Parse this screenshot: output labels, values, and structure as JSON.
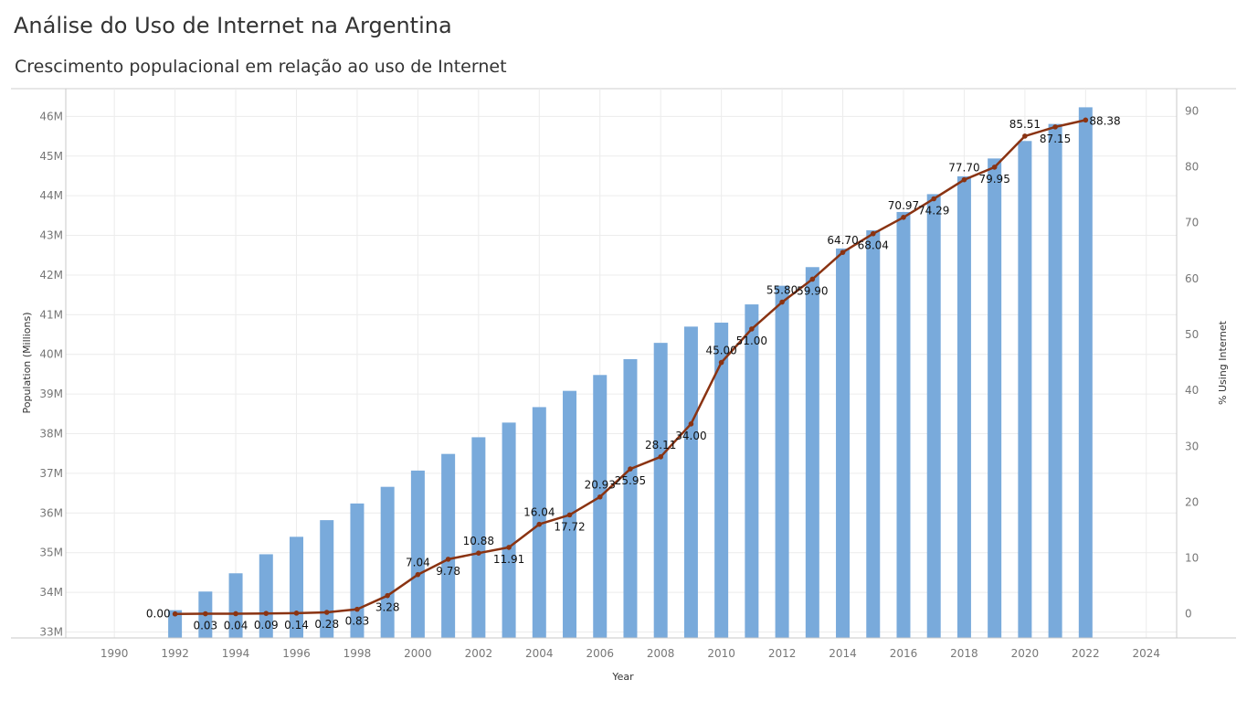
{
  "header": {
    "title": "Análise do Uso de Internet na Argentina",
    "subtitle": "Crescimento populacional em relação ao uso de Internet"
  },
  "colors": {
    "bar": "#79aadb",
    "line": "#8a3312",
    "grid": "#ececec",
    "axis": "#c8c8c8"
  },
  "chart_data": {
    "type": "bar",
    "title": "",
    "xlabel": "Year",
    "ylabel": "Population (Millions)",
    "y2label": "% Using Internet",
    "grid": true,
    "x_ticks": [
      1990,
      1992,
      1994,
      1996,
      1998,
      2000,
      2002,
      2004,
      2006,
      2008,
      2010,
      2012,
      2014,
      2016,
      2018,
      2020,
      2022,
      2024
    ],
    "xlim": [
      1988.4,
      2025
    ],
    "ylim": [
      32.85,
      46.7
    ],
    "y_ticks": [
      33,
      34,
      35,
      36,
      37,
      38,
      39,
      40,
      41,
      42,
      43,
      44,
      45,
      46
    ],
    "y_tick_labels": [
      "33M",
      "34M",
      "35M",
      "36M",
      "37M",
      "38M",
      "39M",
      "40M",
      "41M",
      "42M",
      "43M",
      "44M",
      "45M",
      "46M"
    ],
    "y2lim": [
      -4.3,
      94
    ],
    "y2_ticks": [
      0,
      10,
      20,
      30,
      40,
      50,
      60,
      70,
      80,
      90
    ],
    "years": [
      1992,
      1993,
      1994,
      1995,
      1996,
      1997,
      1998,
      1999,
      2000,
      2001,
      2002,
      2003,
      2004,
      2005,
      2006,
      2007,
      2008,
      2009,
      2010,
      2011,
      2012,
      2013,
      2014,
      2015,
      2016,
      2017,
      2018,
      2019,
      2020,
      2021,
      2022
    ],
    "series": [
      {
        "name": "Population (Millions)",
        "type": "bar",
        "values": [
          33.55,
          34.02,
          34.48,
          34.96,
          35.4,
          35.82,
          36.24,
          36.66,
          37.07,
          37.49,
          37.91,
          38.28,
          38.67,
          39.08,
          39.48,
          39.88,
          40.29,
          40.7,
          40.8,
          41.26,
          41.73,
          42.2,
          42.67,
          43.13,
          43.59,
          44.04,
          44.49,
          44.94,
          45.38,
          45.81,
          46.23
        ]
      },
      {
        "name": "% Using Internet",
        "type": "line",
        "values": [
          0.0,
          0.03,
          0.04,
          0.09,
          0.14,
          0.28,
          0.83,
          3.28,
          7.04,
          9.78,
          10.88,
          11.91,
          16.04,
          17.72,
          20.93,
          25.95,
          28.11,
          34.0,
          45.0,
          51.0,
          55.8,
          59.9,
          64.7,
          68.04,
          70.97,
          74.29,
          77.7,
          79.95,
          85.51,
          87.15,
          88.38
        ],
        "labels": [
          "0.00",
          "0.03",
          "0.04",
          "0.09",
          "0.14",
          "0.28",
          "0.83",
          "3.28",
          "7.04",
          "9.78",
          "10.88",
          "11.91",
          "16.04",
          "17.72",
          "20.93",
          "25.95",
          "28.11",
          "34.00",
          "45.00",
          "51.00",
          "55.80",
          "59.90",
          "64.70",
          "68.04",
          "70.97",
          "74.29",
          "77.70",
          "79.95",
          "85.51",
          "87.15",
          "88.38"
        ]
      }
    ]
  }
}
